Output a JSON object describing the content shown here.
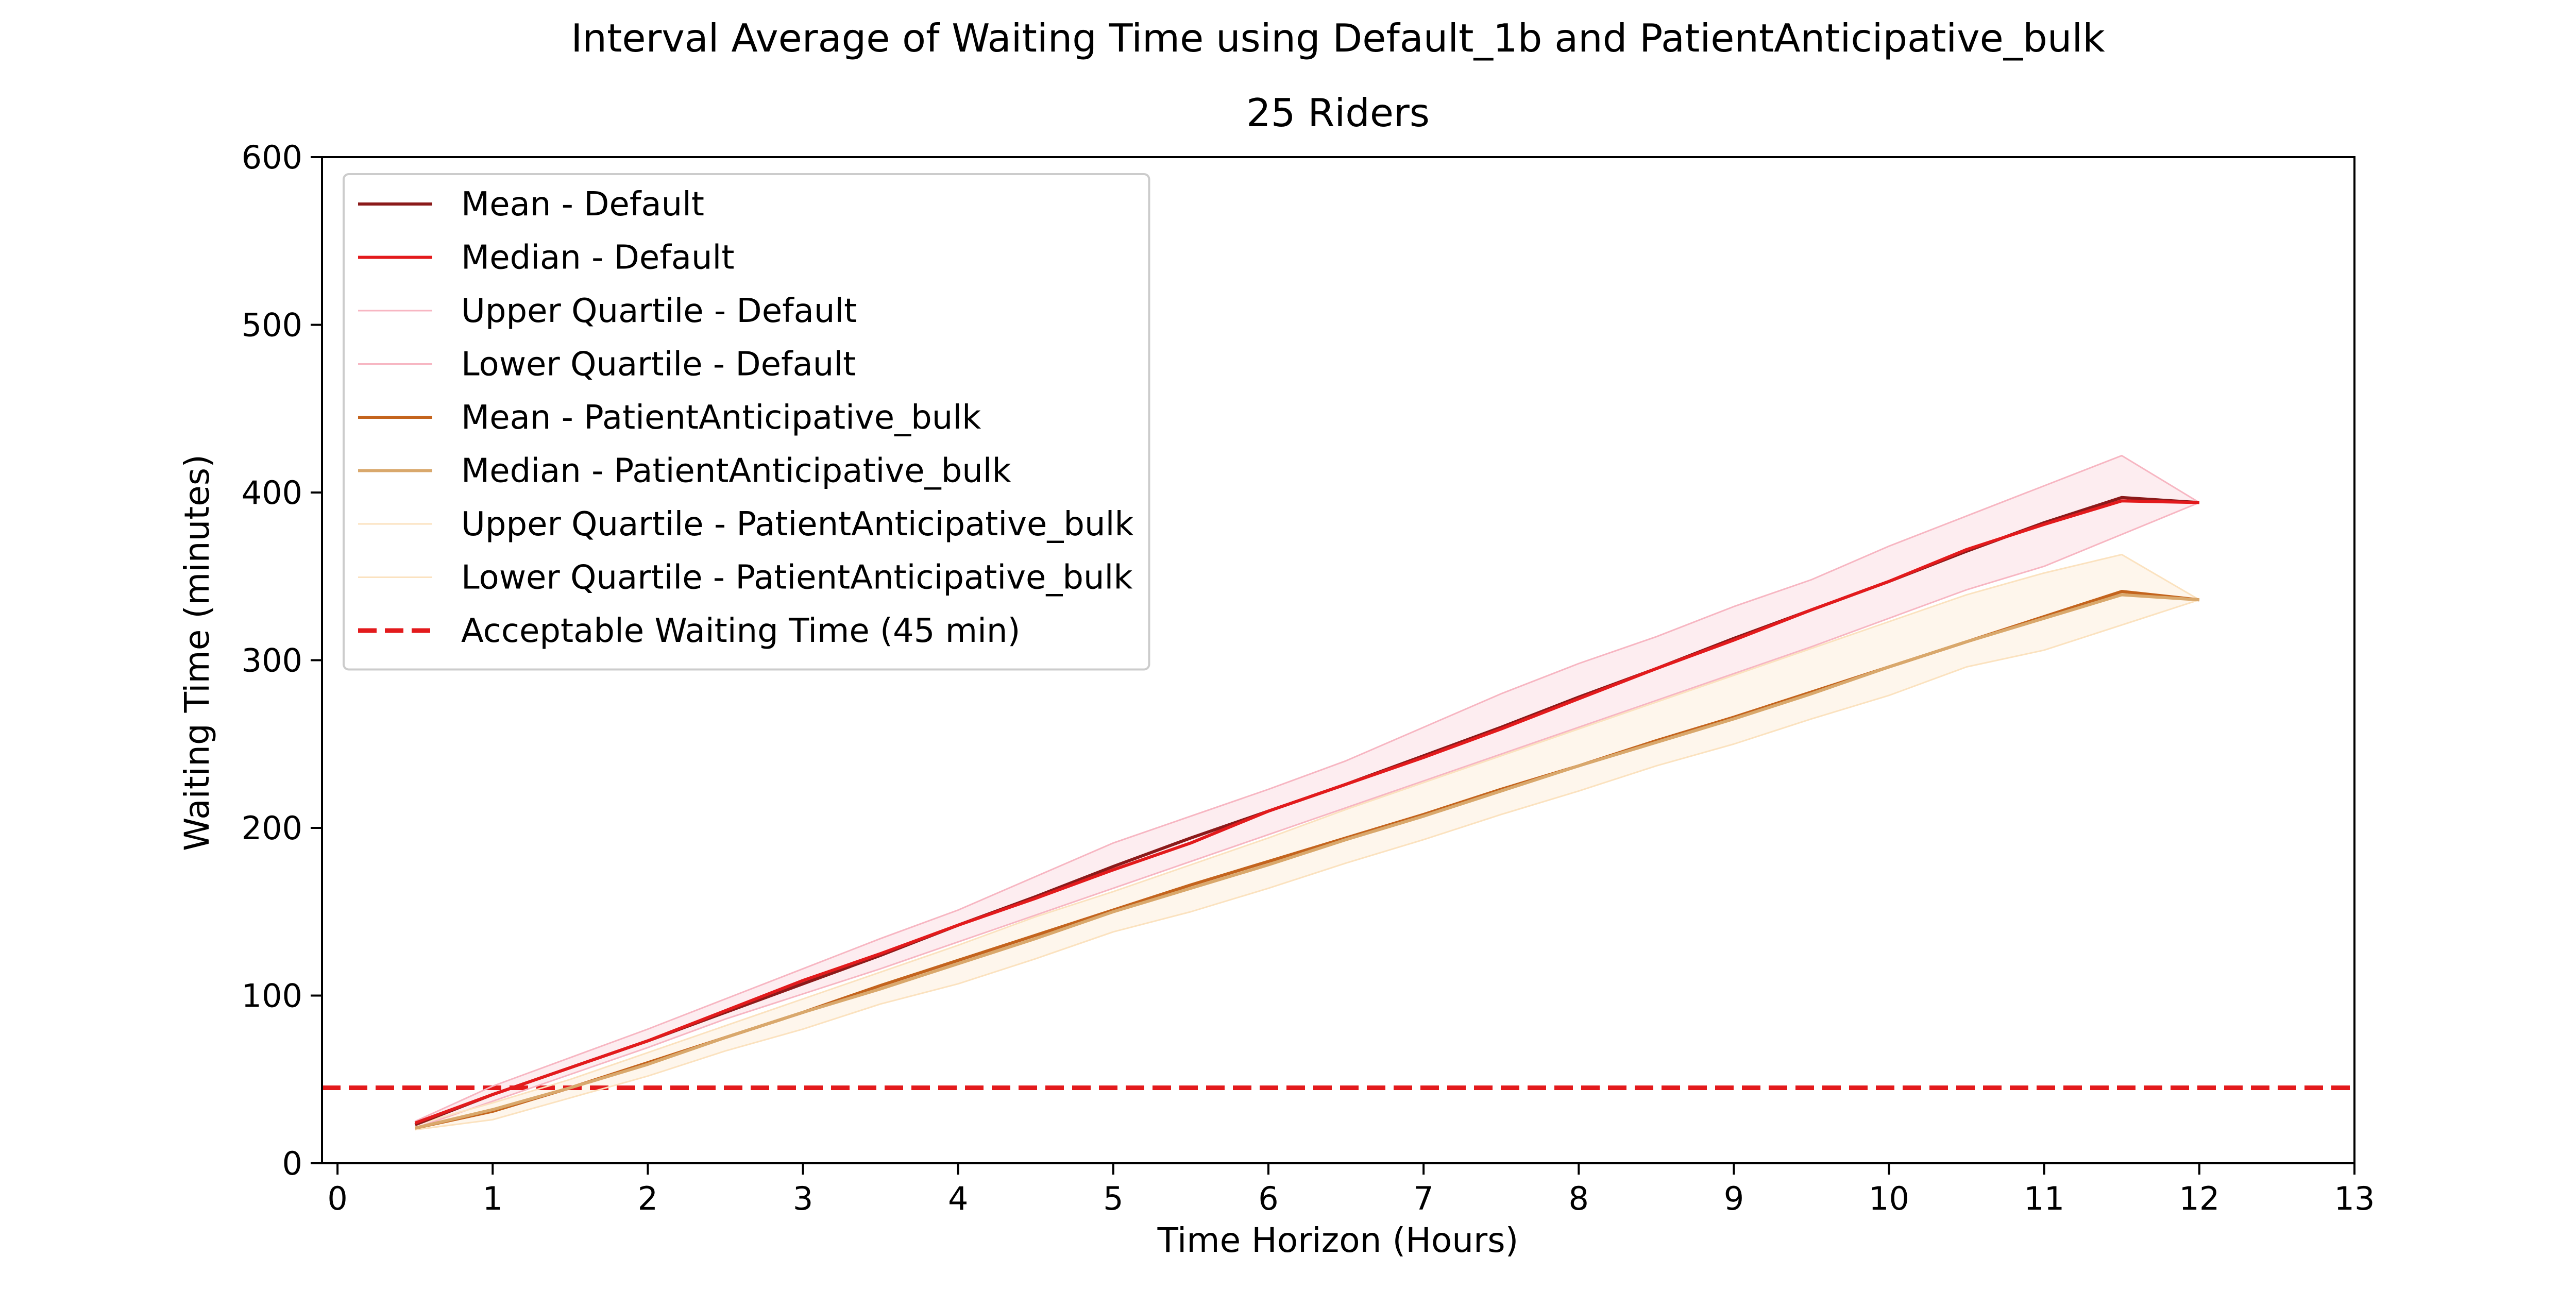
{
  "chart_data": {
    "type": "line",
    "title": "Interval Average of Waiting Time using Default_1b and PatientAnticipative_bulk",
    "subtitle": "25 Riders",
    "xlabel": "Time Horizon (Hours)",
    "ylabel": "Waiting Time (minutes)",
    "xlim": [
      -0.1,
      13
    ],
    "ylim": [
      0,
      600
    ],
    "xticks": [
      0,
      1,
      2,
      3,
      4,
      5,
      6,
      7,
      8,
      9,
      10,
      11,
      12,
      13
    ],
    "yticks": [
      0,
      100,
      200,
      300,
      400,
      500,
      600
    ],
    "grid": false,
    "legend_position": "upper-left",
    "x": [
      0.5,
      1,
      1.5,
      2,
      2.5,
      3,
      3.5,
      4,
      4.5,
      5,
      5.5,
      6,
      6.5,
      7,
      7.5,
      8,
      8.5,
      9,
      9.5,
      10,
      10.5,
      11,
      11.5,
      12
    ],
    "series": [
      {
        "name": "Mean - Default",
        "color": "#8b1a1a",
        "style": "solid",
        "role": "line",
        "values": [
          23,
          41,
          57,
          73,
          90,
          107,
          124,
          142,
          159,
          177,
          194,
          210,
          226,
          243,
          260,
          278,
          295,
          313,
          330,
          347,
          365,
          382,
          397,
          394
        ]
      },
      {
        "name": "Median - Default",
        "color": "#e31a1c",
        "style": "solid",
        "role": "line",
        "values": [
          24,
          41,
          57,
          73,
          91,
          109,
          125,
          142,
          158,
          175,
          191,
          210,
          226,
          242,
          259,
          277,
          295,
          312,
          330,
          347,
          366,
          381,
          395,
          394
        ]
      },
      {
        "name": "Upper Quartile - Default",
        "color": "#f7b6c2",
        "style": "solid",
        "role": "band-upper",
        "values": [
          25,
          46,
          63,
          80,
          98,
          116,
          134,
          151,
          171,
          191,
          207,
          223,
          240,
          260,
          280,
          298,
          314,
          332,
          348,
          368,
          386,
          404,
          422,
          394
        ]
      },
      {
        "name": "Lower Quartile - Default",
        "color": "#f7b6c2",
        "style": "solid",
        "role": "band-lower",
        "values": [
          21,
          37,
          53,
          69,
          86,
          101,
          116,
          132,
          148,
          164,
          180,
          196,
          212,
          228,
          244,
          260,
          276,
          292,
          308,
          325,
          342,
          356,
          375,
          394
        ]
      },
      {
        "name": "Mean - PatientAnticipative_bulk",
        "color": "#c4641d",
        "style": "solid",
        "role": "line",
        "values": [
          21,
          31,
          45,
          60,
          75,
          90,
          106,
          121,
          136,
          151,
          166,
          180,
          194,
          208,
          223,
          237,
          252,
          266,
          281,
          296,
          311,
          326,
          341,
          336
        ]
      },
      {
        "name": "Median - PatientAnticipative_bulk",
        "color": "#d9a86c",
        "style": "solid",
        "role": "line",
        "values": [
          21,
          32,
          45,
          59,
          75,
          90,
          104,
          119,
          134,
          150,
          164,
          178,
          193,
          207,
          222,
          237,
          251,
          265,
          280,
          296,
          311,
          325,
          339,
          336
        ]
      },
      {
        "name": "Upper Quartile - PatientAnticipative_bulk",
        "color": "#fbe2bf",
        "style": "solid",
        "role": "band-upper",
        "values": [
          23,
          36,
          50,
          66,
          82,
          98,
          114,
          130,
          147,
          162,
          178,
          194,
          211,
          227,
          243,
          259,
          275,
          291,
          307,
          323,
          339,
          352,
          363,
          336
        ]
      },
      {
        "name": "Lower Quartile - PatientAnticipative_bulk",
        "color": "#fbe2bf",
        "style": "solid",
        "role": "band-lower",
        "values": [
          20,
          26,
          39,
          52,
          67,
          80,
          95,
          107,
          122,
          138,
          150,
          164,
          179,
          193,
          208,
          222,
          237,
          250,
          265,
          279,
          296,
          306,
          321,
          336
        ]
      }
    ],
    "band_fills": [
      {
        "upper": "Upper Quartile - Default",
        "lower": "Lower Quartile - Default",
        "color": "#f7b6c2",
        "opacity": 0.25
      },
      {
        "upper": "Upper Quartile - PatientAnticipative_bulk",
        "lower": "Lower Quartile - PatientAnticipative_bulk",
        "color": "#fbe2bf",
        "opacity": 0.3
      }
    ],
    "reference_lines": [
      {
        "name": "Acceptable Waiting Time (45 min)",
        "orientation": "horizontal",
        "y": 45,
        "color": "#e31a1c",
        "style": "dashed"
      }
    ]
  }
}
